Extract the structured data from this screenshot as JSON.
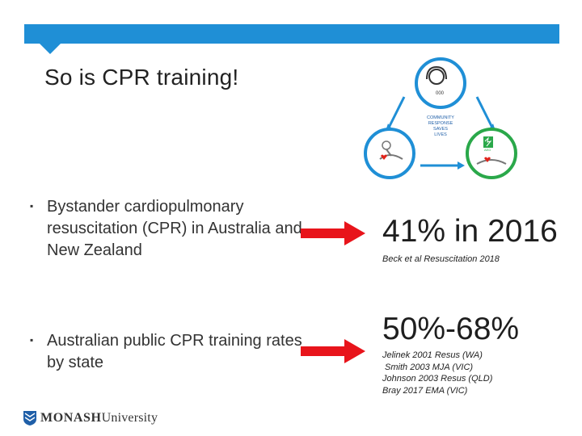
{
  "slide": {
    "title": "So is CPR training!"
  },
  "graphic": {
    "phone_label": "000",
    "center_lines": [
      "COMMUNITY",
      "RESPONSE",
      "SAVES",
      "LIVES"
    ],
    "aed_label": "AED",
    "accent_blue": "#1f8fd6",
    "accent_green": "#2aa84a",
    "accent_red": "#e2231a"
  },
  "rows": [
    {
      "bullet": "Bystander cardiopulmonary resuscitation (CPR) in Australia and New Zealand",
      "stat": "41% in 2016",
      "refs": [
        "Beck et al Resuscitation 2018"
      ]
    },
    {
      "bullet": "Australian public CPR training rates by state",
      "stat": "50%-68%",
      "refs": [
        "Jelinek 2001 Resus (WA)",
        " Smith 2003 MJA (VIC)",
        "Johnson 2003 Resus (QLD)",
        "Bray 2017 EMA (VIC)"
      ]
    }
  ],
  "footer": {
    "logo_bold": "MONASH",
    "logo_rest": "University"
  },
  "colors": {
    "arrow": "#e8141b",
    "bar": "#1f8fd6"
  }
}
